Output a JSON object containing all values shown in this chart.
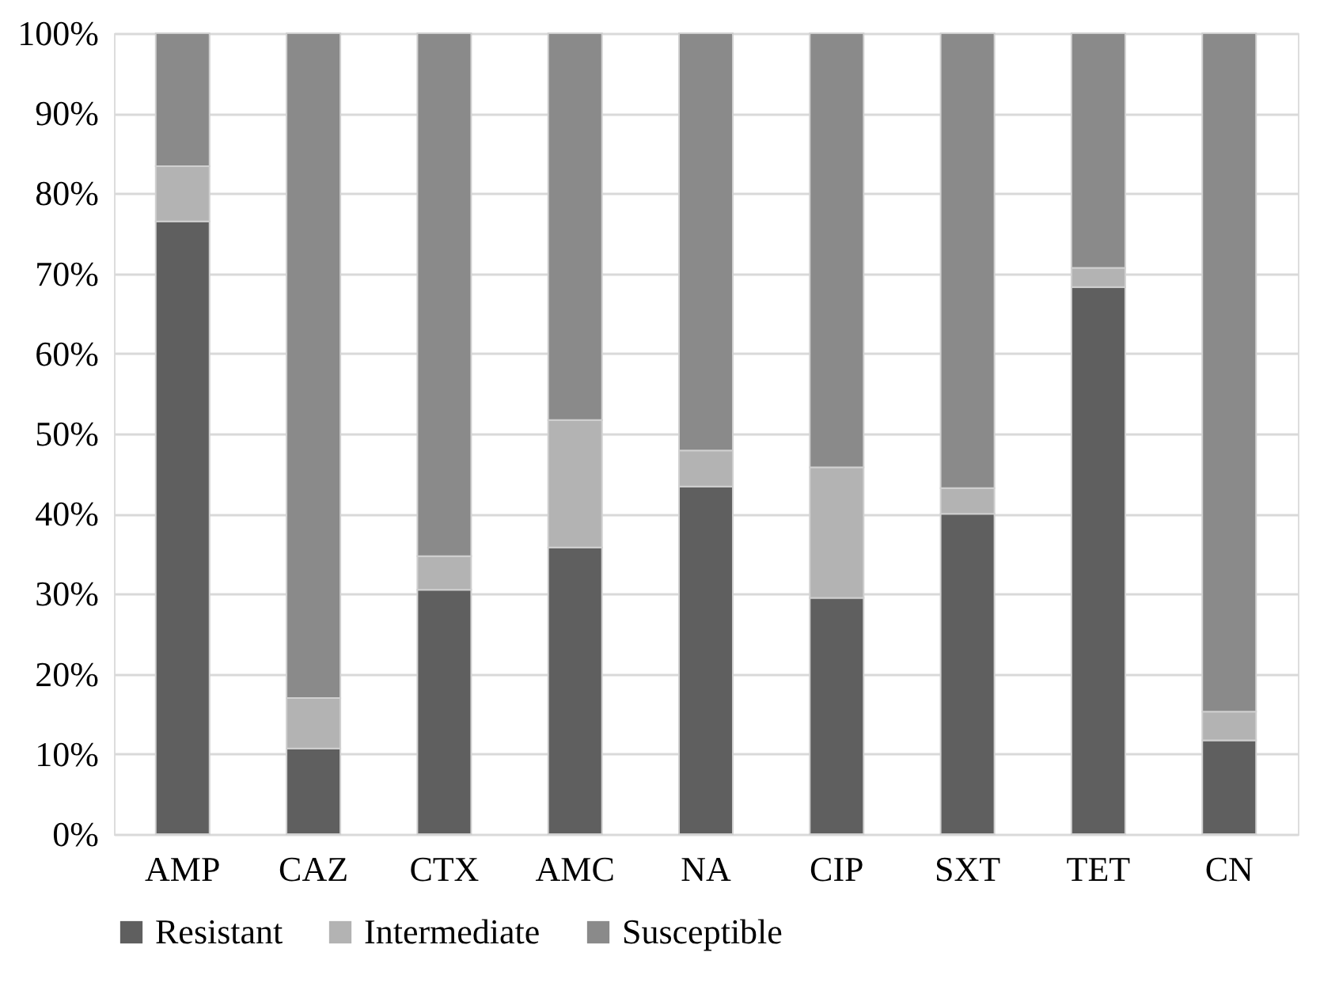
{
  "chart_data": {
    "type": "bar",
    "stacked": true,
    "categories": [
      "AMP",
      "CAZ",
      "CTX",
      "AMC",
      "NA",
      "CIP",
      "SXT",
      "TET",
      "CN"
    ],
    "series": [
      {
        "name": "Resistant",
        "color": "#5f5f5f",
        "values": [
          76.5,
          10.7,
          30.5,
          35.8,
          43.4,
          29.5,
          40.0,
          68.3,
          11.7
        ]
      },
      {
        "name": "Intermediate",
        "color": "#b3b3b3",
        "values": [
          6.9,
          6.3,
          4.2,
          15.9,
          4.5,
          16.3,
          3.2,
          2.4,
          3.6
        ]
      },
      {
        "name": "Susceptible",
        "color": "#8a8a8a",
        "values": [
          16.6,
          83.0,
          65.3,
          48.3,
          52.1,
          54.2,
          56.8,
          29.3,
          84.7
        ]
      }
    ],
    "ylim": [
      0,
      100
    ],
    "yticks": [
      {
        "value": 0,
        "label": "0%"
      },
      {
        "value": 10,
        "label": "10%"
      },
      {
        "value": 20,
        "label": "20%"
      },
      {
        "value": 30,
        "label": "30%"
      },
      {
        "value": 40,
        "label": "40%"
      },
      {
        "value": 50,
        "label": "50%"
      },
      {
        "value": 60,
        "label": "60%"
      },
      {
        "value": 70,
        "label": "70%"
      },
      {
        "value": 80,
        "label": "80%"
      },
      {
        "value": 90,
        "label": "90%"
      },
      {
        "value": 100,
        "label": "100%"
      }
    ],
    "grid": "y",
    "legend": "bottom"
  }
}
